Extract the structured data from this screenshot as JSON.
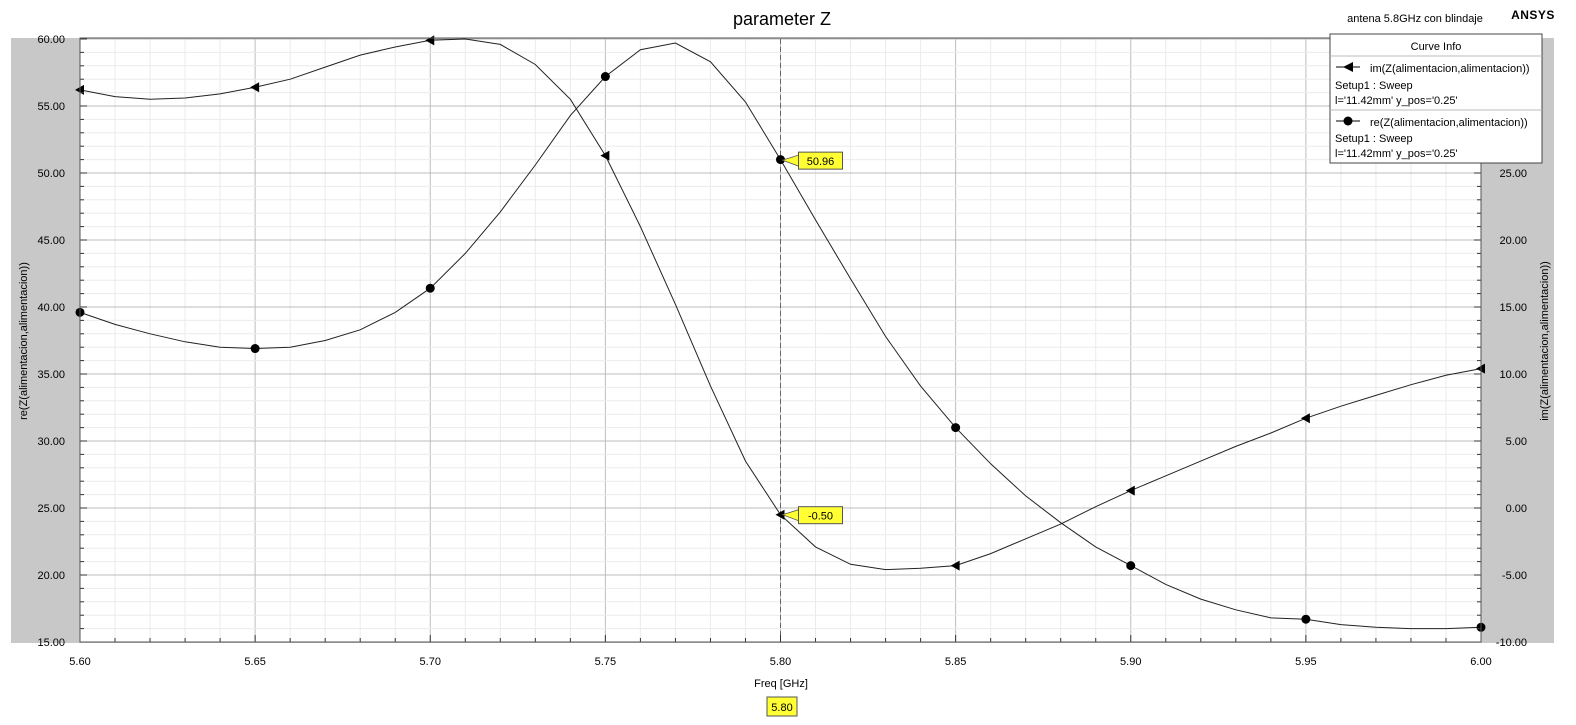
{
  "header": {
    "project": "antena 5.8GHz con blindaje",
    "brand": "ANSYS"
  },
  "legend": {
    "title": "Curve Info",
    "entries": [
      {
        "name": "im(Z(alimentacion,alimentacion))",
        "line2": "Setup1 : Sweep",
        "line3": "l='11.42mm' y_pos='0.25'",
        "marker": "triangle"
      },
      {
        "name": "re(Z(alimentacion,alimentacion))",
        "line2": "Setup1 : Sweep",
        "line3": "l='11.42mm' y_pos='0.25'",
        "marker": "circle"
      }
    ]
  },
  "markers": {
    "x_value": "5.80",
    "re_value": "50.96",
    "im_value": "-0.50"
  },
  "chart_data": {
    "type": "line",
    "title": "parameter Z",
    "xlabel": "Freq [GHz]",
    "ylabel": "re(Z(alimentacion,alimentacion))",
    "y2label": "im(Z(alimentacion,alimentacion))",
    "xlim": [
      5.6,
      6.0
    ],
    "ylim": [
      15,
      60
    ],
    "y2lim": [
      -10,
      35
    ],
    "x_ticks": [
      "5.60",
      "5.65",
      "5.70",
      "5.75",
      "5.80",
      "5.85",
      "5.90",
      "5.95",
      "6.00"
    ],
    "y_ticks": [
      "15.00",
      "20.00",
      "25.00",
      "30.00",
      "35.00",
      "40.00",
      "45.00",
      "50.00",
      "55.00",
      "60.00"
    ],
    "y2_ticks": [
      "-10.00",
      "-5.00",
      "0.00",
      "5.00",
      "10.00",
      "15.00",
      "20.00",
      "25.00"
    ],
    "grid": true,
    "legend_position": "top-right",
    "series": [
      {
        "name": "re(Z(alimentacion,alimentacion))",
        "axis": "left",
        "marker": "circle",
        "x": [
          5.6,
          5.61,
          5.62,
          5.63,
          5.64,
          5.65,
          5.66,
          5.67,
          5.68,
          5.69,
          5.7,
          5.71,
          5.72,
          5.73,
          5.74,
          5.75,
          5.76,
          5.77,
          5.78,
          5.79,
          5.8,
          5.81,
          5.82,
          5.83,
          5.84,
          5.85,
          5.86,
          5.87,
          5.88,
          5.89,
          5.9,
          5.91,
          5.92,
          5.93,
          5.94,
          5.95,
          5.96,
          5.97,
          5.98,
          5.99,
          6.0
        ],
        "y": [
          39.6,
          38.7,
          38.0,
          37.4,
          37.0,
          36.9,
          37.0,
          37.5,
          38.3,
          39.6,
          41.4,
          44.0,
          47.1,
          50.6,
          54.3,
          57.2,
          59.2,
          59.7,
          58.3,
          55.3,
          51.0,
          46.5,
          42.1,
          37.8,
          34.1,
          31.0,
          28.3,
          25.9,
          23.9,
          22.1,
          20.7,
          19.3,
          18.2,
          17.4,
          16.8,
          16.7,
          16.3,
          16.1,
          16.0,
          16.0,
          16.1
        ]
      },
      {
        "name": "im(Z(alimentacion,alimentacion))",
        "axis": "right",
        "marker": "triangle",
        "x": [
          5.6,
          5.61,
          5.62,
          5.63,
          5.64,
          5.65,
          5.66,
          5.67,
          5.68,
          5.69,
          5.7,
          5.71,
          5.72,
          5.73,
          5.74,
          5.75,
          5.76,
          5.77,
          5.78,
          5.79,
          5.8,
          5.81,
          5.82,
          5.83,
          5.84,
          5.85,
          5.86,
          5.87,
          5.88,
          5.89,
          5.9,
          5.91,
          5.92,
          5.93,
          5.94,
          5.95,
          5.96,
          5.97,
          5.98,
          5.99,
          6.0
        ],
        "y": [
          31.2,
          30.7,
          30.5,
          30.6,
          30.9,
          31.4,
          32.0,
          32.9,
          33.8,
          34.4,
          34.9,
          35.0,
          34.6,
          33.1,
          30.5,
          26.3,
          21.0,
          15.2,
          9.1,
          3.5,
          -0.5,
          -2.9,
          -4.2,
          -4.6,
          -4.5,
          -4.3,
          -3.4,
          -2.3,
          -1.2,
          0.1,
          1.3,
          2.4,
          3.5,
          4.6,
          5.6,
          6.7,
          7.6,
          8.4,
          9.2,
          9.9,
          10.4
        ]
      }
    ]
  }
}
